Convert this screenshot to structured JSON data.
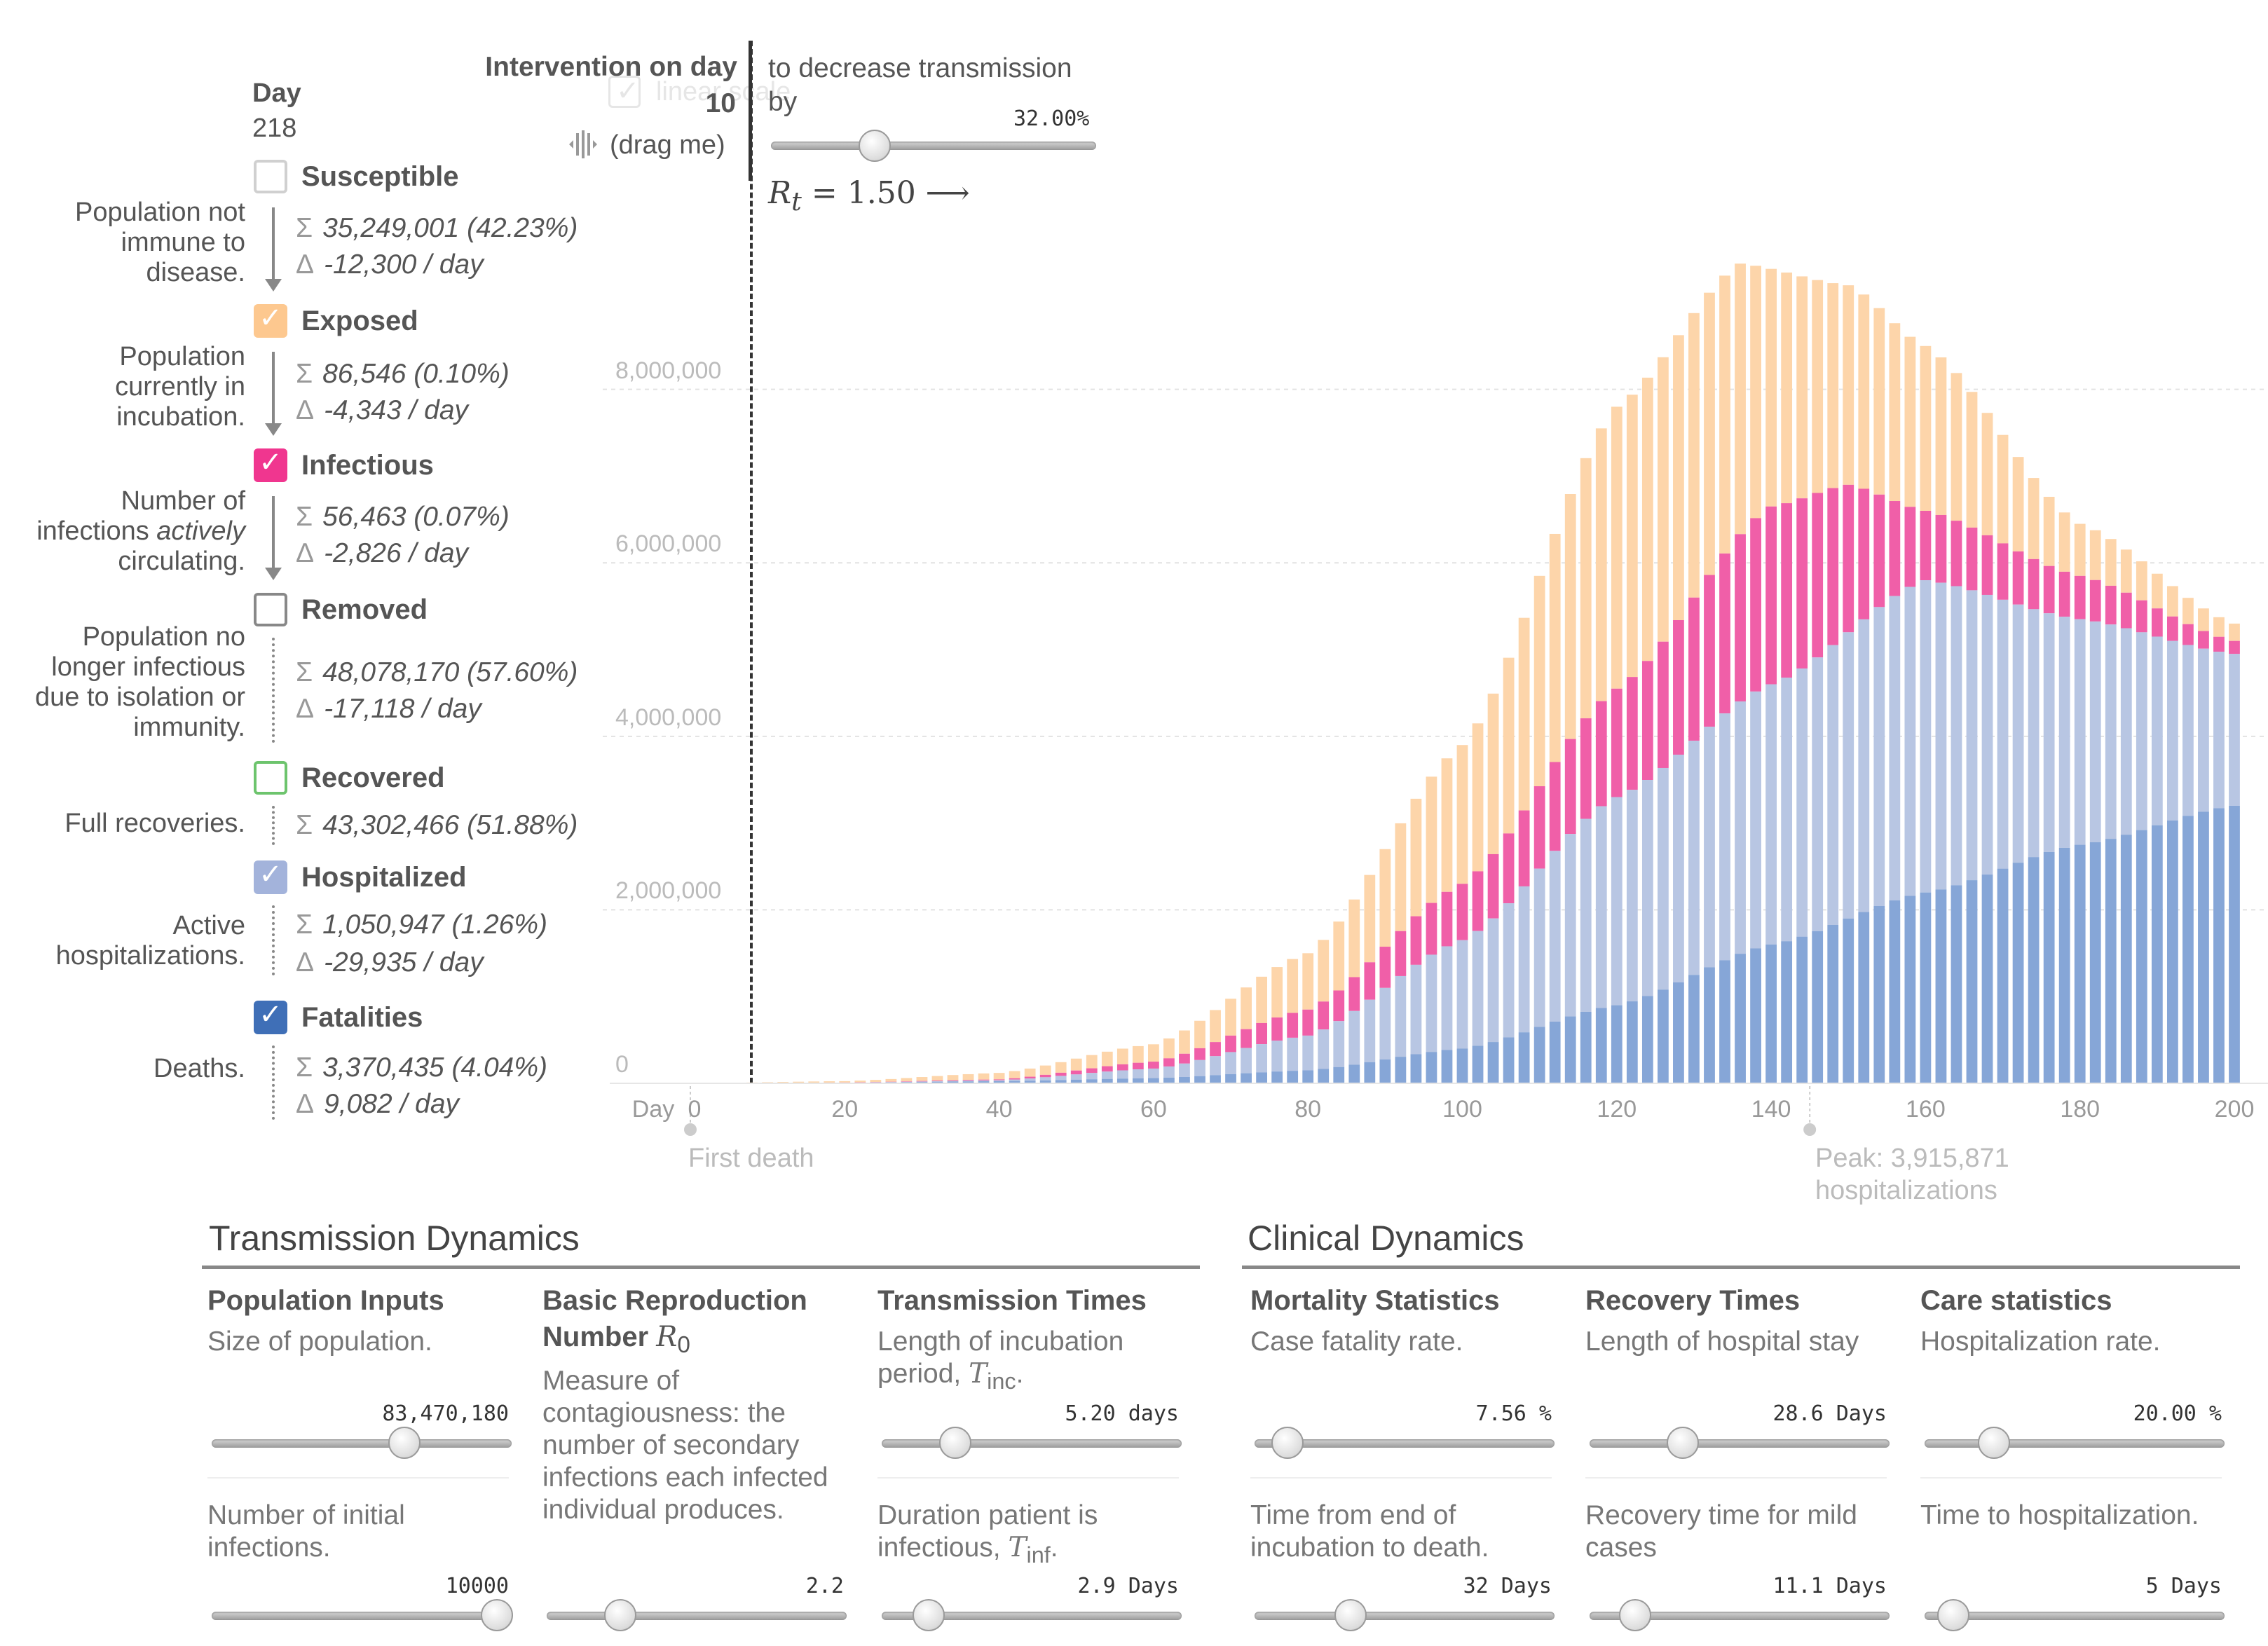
{
  "top": {
    "day_label": "Day",
    "day_value": "218",
    "linear_scale_label": "linear scale"
  },
  "categories": [
    {
      "name": "Susceptible",
      "checked": false,
      "color": "#bbbbbb",
      "description": "Population not immune to disease.",
      "total": "35,249,001 (42.23%)",
      "delta": "-12,300 / day"
    },
    {
      "name": "Exposed",
      "checked": true,
      "color": "#fdc88f",
      "description": "Population currently in incubation.",
      "total": "86,546 (0.10%)",
      "delta": "-4,343 / day"
    },
    {
      "name": "Infectious",
      "checked": true,
      "color": "#f0368f",
      "description": "Number of infections actively circulating.",
      "total": "56,463 (0.07%)",
      "delta": "-2,826 / day"
    },
    {
      "name": "Removed",
      "checked": false,
      "color": "#888888",
      "description": "Population no longer infectious due to isolation or immunity.",
      "total": "48,078,170 (57.60%)",
      "delta": "-17,118 / day"
    },
    {
      "name": "Recovered",
      "checked": false,
      "color": "#6dc46d",
      "description": "Full recoveries.",
      "total": "43,302,466 (51.88%)",
      "delta": ""
    },
    {
      "name": "Hospitalized",
      "checked": true,
      "color": "#a3b3db",
      "description": "Active hospitalizations.",
      "total": "1,050,947 (1.26%)",
      "delta": "-29,935 / day"
    },
    {
      "name": "Fatalities",
      "checked": true,
      "color": "#3f6fb7",
      "description": "Deaths.",
      "total": "3,370,435 (4.04%)",
      "delta": "9,082 / day"
    }
  ],
  "desc_parts": {
    "infectious_a": "Number of infections ",
    "infectious_em": "actively",
    "infectious_b": " circulating."
  },
  "intervention": {
    "title": "Intervention on day",
    "day": "10",
    "drag_hint": "(drag me)",
    "decrease_text_1": "to decrease transmission",
    "decrease_text_2": "by",
    "decrease_value": "32.00%",
    "decrease_fraction": 0.32,
    "rt_symbol": "R",
    "rt_sub": "t",
    "rt_value": "= 1.50 ⟶"
  },
  "chart_data": {
    "type": "bar",
    "stacked": true,
    "x_start": 1,
    "x_end": 200,
    "xlim": [
      0,
      200
    ],
    "ylim": [
      0,
      9500000
    ],
    "x_ticks": [
      "0",
      "20",
      "40",
      "60",
      "80",
      "100",
      "120",
      "140",
      "160",
      "180",
      "200"
    ],
    "x_tick_prefix": "Day",
    "y_ticks": [
      "0",
      "2,000,000",
      "4,000,000",
      "6,000,000",
      "8,000,000"
    ],
    "y_tick_values": [
      0,
      2000000,
      4000000,
      6000000,
      8000000
    ],
    "grid": true,
    "series": [
      {
        "name": "Fatalities",
        "color": "#86a6d7",
        "anchors": [
          [
            0,
            0
          ],
          [
            20,
            6000
          ],
          [
            40,
            25000
          ],
          [
            60,
            60000
          ],
          [
            80,
            150000
          ],
          [
            100,
            400000
          ],
          [
            120,
            900000
          ],
          [
            140,
            1600000
          ],
          [
            160,
            2200000
          ],
          [
            180,
            2750000
          ],
          [
            200,
            3200000
          ]
        ]
      },
      {
        "name": "Hospitalized",
        "color": "#b8c6e3",
        "anchors": [
          [
            0,
            0
          ],
          [
            20,
            7000
          ],
          [
            40,
            35000
          ],
          [
            60,
            170000
          ],
          [
            80,
            550000
          ],
          [
            100,
            1650000
          ],
          [
            120,
            3300000
          ],
          [
            140,
            4600000
          ],
          [
            160,
            5800000
          ],
          [
            180,
            5350000
          ],
          [
            200,
            4950000
          ]
        ]
      },
      {
        "name": "Infectious",
        "color": "#f05fa8",
        "anchors": [
          [
            0,
            0
          ],
          [
            20,
            9000
          ],
          [
            40,
            45000
          ],
          [
            60,
            250000
          ],
          [
            80,
            850000
          ],
          [
            100,
            2300000
          ],
          [
            120,
            4550000
          ],
          [
            140,
            6650000
          ],
          [
            150,
            6900000
          ],
          [
            160,
            6600000
          ],
          [
            180,
            5850000
          ],
          [
            200,
            5100000
          ]
        ]
      },
      {
        "name": "Exposed",
        "color": "#fdd5aa",
        "anchors": [
          [
            0,
            0
          ],
          [
            20,
            25000
          ],
          [
            40,
            120000
          ],
          [
            60,
            450000
          ],
          [
            80,
            1500000
          ],
          [
            100,
            3900000
          ],
          [
            120,
            7800000
          ],
          [
            136,
            9450000
          ],
          [
            150,
            9200000
          ],
          [
            160,
            8500000
          ],
          [
            180,
            6450000
          ],
          [
            200,
            5300000
          ]
        ]
      }
    ],
    "annotations": [
      {
        "label": "First death",
        "x": 0
      },
      {
        "label": "Peak: 3,915,871 hospitalizations",
        "x": 145
      }
    ]
  },
  "transmission": {
    "title": "Transmission Dynamics",
    "population_head": "Population Inputs",
    "population_desc": "Size of population.",
    "population_value": "83,470,180",
    "initial_desc": "Number of initial infections.",
    "initial_value": "10000",
    "r0_head": "Basic Reproduction Number",
    "r0_symbol": "R",
    "r0_sub": "0",
    "r0_desc": "Measure of contagiousness: the number of secondary infections each infected individual produces.",
    "r0_value": "2.2",
    "times_head": "Transmission Times",
    "incubation_desc": "Length of incubation period,",
    "incubation_symbol": "T",
    "incubation_sub": "inc",
    "incubation_value": "5.20 days",
    "infectious_desc": "Duration patient is infectious,",
    "infectious_symbol": "T",
    "infectious_sub": "inf",
    "infectious_value": "2.9 Days"
  },
  "clinical": {
    "title": "Clinical Dynamics",
    "mortality_head": "Mortality Statistics",
    "cfr_desc": "Case fatality rate.",
    "cfr_value": "7.56 %",
    "death_desc": "Time from end of incubation to death.",
    "death_value": "32 Days",
    "recovery_head": "Recovery Times",
    "hospital_stay_desc": "Length of hospital stay",
    "hospital_stay_value": "28.6 Days",
    "mild_desc": "Recovery time for mild cases",
    "mild_value": "11.1 Days",
    "care_head": "Care statistics",
    "hosp_rate_desc": "Hospitalization rate.",
    "hosp_rate_value": "20.00 %",
    "to_hosp_desc": "Time to hospitalization.",
    "to_hosp_value": "5 Days"
  }
}
